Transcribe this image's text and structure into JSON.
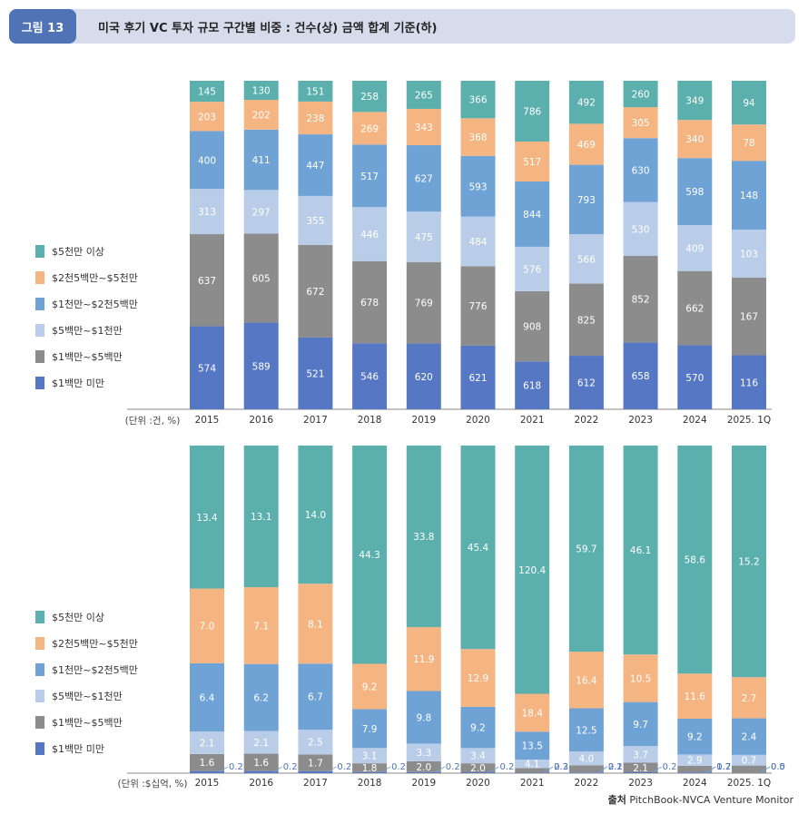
{
  "header": {
    "figure_label": "그림 13",
    "title": "미국 후기 VC 투자 규모 구간별 비중 : 건수(상) 금액 합계 기준(하)"
  },
  "legend": [
    {
      "label": "$5천만 이상",
      "color": "#5bb0ad"
    },
    {
      "label": "$2천5백만~$5천만",
      "color": "#f4b583"
    },
    {
      "label": "$1천만~$2천5백만",
      "color": "#6fa3d6"
    },
    {
      "label": "$5백만~$1천만",
      "color": "#b9cde9"
    },
    {
      "label": "$1백만~$5백만",
      "color": "#8c8c8c"
    },
    {
      "label": "$1백만 미만",
      "color": "#5577c4"
    }
  ],
  "chart_data": [
    {
      "type": "bar",
      "stacked": true,
      "normalized": true,
      "unit_label": "(단위 :건, %)",
      "categories": [
        "2015",
        "2016",
        "2017",
        "2018",
        "2019",
        "2020",
        "2021",
        "2022",
        "2023",
        "2024",
        "2025. 1Q"
      ],
      "series": [
        {
          "name": "$1백만 미만",
          "values": [
            574,
            589,
            521,
            546,
            620,
            621,
            618,
            612,
            658,
            570,
            116
          ]
        },
        {
          "name": "$1백만~$5백만",
          "values": [
            637,
            605,
            672,
            678,
            769,
            776,
            908,
            825,
            852,
            662,
            167
          ]
        },
        {
          "name": "$5백만~$1천만",
          "values": [
            313,
            297,
            355,
            446,
            475,
            484,
            576,
            566,
            530,
            409,
            103
          ]
        },
        {
          "name": "$1천만~$2천5백만",
          "values": [
            400,
            411,
            447,
            517,
            627,
            593,
            844,
            793,
            630,
            598,
            148
          ]
        },
        {
          "name": "$2천5백만~$5천만",
          "values": [
            203,
            202,
            238,
            269,
            343,
            368,
            517,
            469,
            305,
            340,
            78
          ]
        },
        {
          "name": "$5천만 이상",
          "values": [
            145,
            130,
            151,
            258,
            265,
            366,
            786,
            492,
            260,
            349,
            94
          ]
        }
      ]
    },
    {
      "type": "bar",
      "stacked": true,
      "normalized": true,
      "unit_label": "(단위 :$십억, %)",
      "categories": [
        "2015",
        "2016",
        "2017",
        "2018",
        "2019",
        "2020",
        "2021",
        "2022",
        "2023",
        "2024",
        "2025. 1Q"
      ],
      "series": [
        {
          "name": "$1백만 미만",
          "values": [
            0.2,
            0.2,
            0.2,
            0.2,
            0.2,
            0.2,
            0.2,
            0.2,
            0.2,
            0.2,
            0.0
          ]
        },
        {
          "name": "$1백만~$5백만",
          "values": [
            1.6,
            1.6,
            1.7,
            1.8,
            2.0,
            2.0,
            2.3,
            2.1,
            2.1,
            1.7,
            0.5
          ]
        },
        {
          "name": "$5백만~$1천만",
          "values": [
            2.1,
            2.1,
            2.5,
            3.1,
            3.3,
            3.4,
            4.1,
            4.0,
            3.7,
            2.9,
            0.7
          ]
        },
        {
          "name": "$1천만~$2천5백만",
          "values": [
            6.4,
            6.2,
            6.7,
            7.9,
            9.8,
            9.2,
            13.5,
            12.5,
            9.7,
            9.2,
            2.4
          ]
        },
        {
          "name": "$2천5백만~$5천만",
          "values": [
            7.0,
            7.1,
            8.1,
            9.2,
            11.9,
            12.9,
            18.4,
            16.4,
            10.5,
            11.6,
            2.7
          ]
        },
        {
          "name": "$5천만 이상",
          "values": [
            13.4,
            13.1,
            14.0,
            44.3,
            33.8,
            45.4,
            120.4,
            59.7,
            46.1,
            58.6,
            15.2
          ]
        }
      ]
    }
  ],
  "source": {
    "label": "출처",
    "text": "PitchBook-NVCA Venture Monitor"
  }
}
